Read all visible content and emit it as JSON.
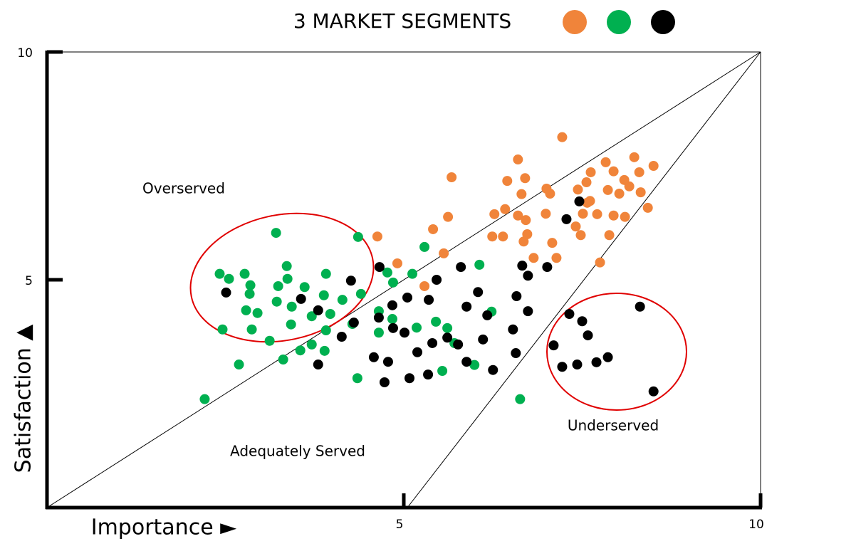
{
  "chart_data": {
    "type": "scatter",
    "title": "3 MARKET SEGMENTS",
    "x_label": "Importance ►",
    "y_label": "Satisfaction ▲",
    "annotations": [
      "Overserved",
      "Adequately Served",
      "Underserved"
    ],
    "xlim": [
      0,
      10
    ],
    "ylim": [
      0,
      10
    ],
    "xticks": [
      5,
      10
    ],
    "yticks": [
      5,
      10
    ],
    "grid": false,
    "series": [
      {
        "color": "#f0843a",
        "x": [
          7.22,
          6.6,
          8.23,
          8.5,
          7.83,
          7.62,
          5.67,
          6.45,
          6.7,
          8.3,
          8.09,
          7.94,
          8.16,
          7.0,
          7.44,
          7.56,
          7.86,
          8.02,
          6.65,
          8.32,
          7.61,
          7.05,
          7.57,
          6.42,
          6.27,
          6.6,
          6.99,
          7.51,
          7.71,
          7.94,
          8.1,
          8.42,
          5.62,
          6.71,
          7.41,
          5.41,
          6.73,
          7.48,
          6.24,
          6.39,
          7.88,
          4.63,
          6.68,
          7.08,
          6.82,
          7.14,
          5.56,
          4.91,
          7.75,
          5.29
        ],
        "values": [
          8.13,
          7.64,
          7.69,
          7.5,
          7.58,
          7.36,
          7.25,
          7.17,
          7.23,
          7.36,
          7.19,
          7.38,
          7.05,
          7.0,
          6.98,
          7.14,
          6.97,
          6.89,
          6.88,
          6.92,
          6.73,
          6.89,
          6.69,
          6.55,
          6.44,
          6.41,
          6.45,
          6.45,
          6.44,
          6.41,
          6.38,
          6.58,
          6.38,
          6.31,
          6.17,
          6.11,
          6.0,
          5.98,
          5.95,
          5.95,
          5.98,
          5.95,
          5.84,
          5.81,
          5.48,
          5.48,
          5.58,
          5.36,
          5.38,
          4.86
        ]
      },
      {
        "color": "#00b050",
        "x": [
          3.21,
          4.36,
          2.42,
          2.55,
          2.77,
          3.36,
          3.91,
          2.85,
          3.37,
          3.24,
          3.61,
          2.84,
          3.88,
          3.22,
          3.43,
          4.14,
          4.4,
          2.79,
          2.95,
          3.71,
          3.97,
          3.42,
          2.87,
          2.46,
          3.91,
          4.28,
          4.65,
          3.12,
          4.84,
          3.55,
          3.71,
          3.89,
          3.31,
          2.69,
          2.21,
          4.35,
          5.54,
          5.99,
          6.63,
          5.29,
          4.77,
          4.85,
          5.12,
          6.06,
          6.23,
          5.18,
          5.45,
          5.61,
          5.71,
          4.65
        ],
        "values": [
          6.03,
          5.94,
          5.13,
          5.02,
          5.13,
          5.3,
          5.13,
          4.88,
          5.02,
          4.86,
          4.84,
          4.69,
          4.66,
          4.52,
          4.41,
          4.56,
          4.69,
          4.33,
          4.27,
          4.2,
          4.25,
          4.02,
          3.91,
          3.91,
          3.89,
          4.03,
          3.84,
          3.66,
          4.14,
          3.45,
          3.58,
          3.44,
          3.25,
          3.14,
          2.38,
          2.84,
          3.0,
          3.13,
          2.38,
          5.72,
          5.16,
          4.94,
          5.13,
          5.33,
          4.3,
          3.95,
          4.08,
          3.94,
          3.61,
          4.31
        ]
      },
      {
        "color": "#000000",
        "x": [
          7.46,
          7.28,
          2.51,
          3.56,
          3.8,
          4.26,
          4.66,
          5.8,
          6.66,
          7.01,
          6.74,
          5.46,
          6.04,
          6.58,
          5.05,
          5.35,
          4.84,
          5.88,
          6.17,
          6.74,
          4.65,
          4.3,
          4.13,
          4.85,
          5.01,
          5.4,
          5.61,
          5.76,
          6.11,
          6.53,
          5.19,
          4.58,
          4.78,
          5.88,
          6.25,
          6.57,
          3.8,
          4.73,
          5.08,
          5.34,
          7.32,
          7.5,
          7.58,
          7.1,
          7.86,
          7.7,
          7.43,
          7.22,
          8.31,
          8.5
        ],
        "values": [
          6.72,
          6.33,
          4.72,
          4.58,
          4.33,
          4.98,
          5.28,
          5.28,
          5.31,
          5.28,
          5.09,
          5.0,
          4.73,
          4.64,
          4.61,
          4.56,
          4.44,
          4.41,
          4.22,
          4.31,
          4.17,
          4.06,
          3.75,
          3.94,
          3.84,
          3.61,
          3.73,
          3.58,
          3.69,
          3.91,
          3.41,
          3.3,
          3.2,
          3.2,
          3.02,
          3.39,
          3.14,
          2.75,
          2.84,
          2.92,
          4.25,
          4.09,
          3.78,
          3.56,
          3.3,
          3.19,
          3.14,
          3.09,
          4.41,
          2.55
        ]
      }
    ]
  }
}
